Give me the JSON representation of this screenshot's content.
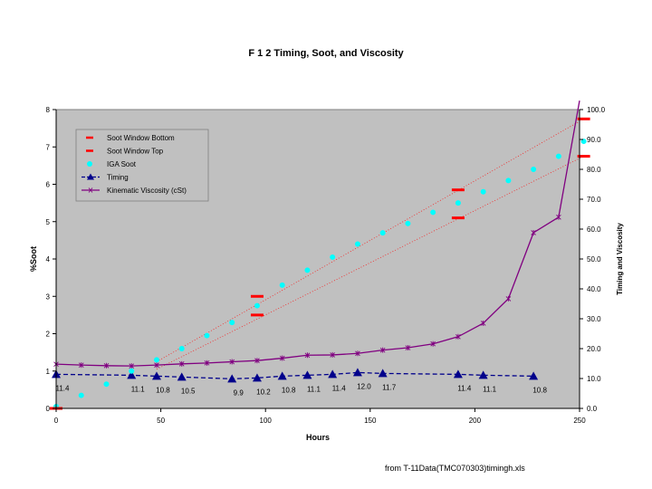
{
  "chart_data": {
    "type": "line",
    "title": "F 1 2 Timing, Soot, and Viscosity",
    "xlabel": "Hours",
    "ylabel": "%Soot",
    "y2label": "Timing and Viscosity",
    "xlim": [
      0,
      250
    ],
    "ylim": [
      0,
      8
    ],
    "y2lim": [
      0,
      100
    ],
    "x_ticks": [
      "0",
      "50",
      "100",
      "150",
      "200",
      "250"
    ],
    "y_ticks": [
      "0",
      "1",
      "2",
      "3",
      "4",
      "5",
      "6",
      "7",
      "8"
    ],
    "y2_ticks": [
      "0.0",
      "10.0",
      "20.0",
      "30.0",
      "40.0",
      "50.0",
      "60.0",
      "70.0",
      "80.0",
      "90.0",
      "100.0"
    ],
    "legend_position": "top-center",
    "series": [
      {
        "name": "Soot Window Bottom",
        "axis": "y1",
        "style": "dash-marker",
        "color": "#ff0000",
        "points": [
          [
            0,
            0
          ],
          [
            96,
            2.5
          ],
          [
            192,
            5.1
          ],
          [
            252,
            6.75
          ]
        ]
      },
      {
        "name": "Soot Window Top",
        "axis": "y1",
        "style": "dash-marker",
        "color": "#ff0000",
        "points": [
          [
            96,
            3.0
          ],
          [
            192,
            5.85
          ],
          [
            252,
            7.75
          ]
        ]
      },
      {
        "name": "IGA Soot",
        "axis": "y1",
        "style": "circle-marker",
        "color": "#00ffff",
        "points": [
          [
            0,
            0.05
          ],
          [
            12,
            0.35
          ],
          [
            24,
            0.65
          ],
          [
            36,
            1.0
          ],
          [
            48,
            1.3
          ],
          [
            60,
            1.6
          ],
          [
            72,
            1.95
          ],
          [
            84,
            2.3
          ],
          [
            96,
            2.75
          ],
          [
            108,
            3.3
          ],
          [
            120,
            3.7
          ],
          [
            132,
            4.05
          ],
          [
            144,
            4.4
          ],
          [
            156,
            4.7
          ],
          [
            168,
            4.95
          ],
          [
            180,
            5.25
          ],
          [
            192,
            5.5
          ],
          [
            204,
            5.8
          ],
          [
            216,
            6.1
          ],
          [
            228,
            6.4
          ],
          [
            240,
            6.75
          ],
          [
            252,
            7.15
          ]
        ]
      },
      {
        "name": "Timing",
        "axis": "y2",
        "style": "dashed-line-triangle",
        "color": "#00008b",
        "points": [
          [
            0,
            11.4
          ],
          [
            36,
            11.1
          ],
          [
            48,
            10.8
          ],
          [
            60,
            10.5
          ],
          [
            84,
            9.9
          ],
          [
            96,
            10.2
          ],
          [
            108,
            10.8
          ],
          [
            120,
            11.1
          ],
          [
            132,
            11.4
          ],
          [
            144,
            12.0
          ],
          [
            156,
            11.7
          ],
          [
            192,
            11.4
          ],
          [
            204,
            11.1
          ],
          [
            228,
            10.8
          ]
        ],
        "labels": [
          "11.4",
          "11.1",
          "10.8",
          "10.5",
          "9.9",
          "10.2",
          "10.8",
          "11.1",
          "11.4",
          "12.0",
          "11.7",
          "11.4",
          "11.1",
          "10.8"
        ]
      },
      {
        "name": "Kinematic Viscosity (cSt)",
        "axis": "y2",
        "style": "line-x-marker",
        "color": "#800080",
        "points": [
          [
            0,
            14.8
          ],
          [
            12,
            14.5
          ],
          [
            24,
            14.3
          ],
          [
            36,
            14.2
          ],
          [
            48,
            14.5
          ],
          [
            60,
            14.9
          ],
          [
            72,
            15.2
          ],
          [
            84,
            15.6
          ],
          [
            96,
            16.0
          ],
          [
            108,
            16.8
          ],
          [
            120,
            17.8
          ],
          [
            132,
            17.9
          ],
          [
            144,
            18.4
          ],
          [
            156,
            19.5
          ],
          [
            168,
            20.3
          ],
          [
            180,
            21.6
          ],
          [
            192,
            24.0
          ],
          [
            204,
            28.5
          ],
          [
            216,
            36.7
          ],
          [
            228,
            58.8
          ],
          [
            240,
            64.0
          ],
          [
            250,
            103.0
          ]
        ]
      }
    ],
    "trendlines": [
      {
        "name": "Soot Window Top trend",
        "color": "#ff0000",
        "points": [
          [
            48,
            1.25
          ],
          [
            252,
            7.75
          ]
        ]
      },
      {
        "name": "Soot Window Bottom trend",
        "color": "#ff0000",
        "points": [
          [
            48,
            1.05
          ],
          [
            252,
            6.75
          ]
        ]
      }
    ]
  },
  "footer": "from T-11Data(TMC070303)timingh.xls"
}
